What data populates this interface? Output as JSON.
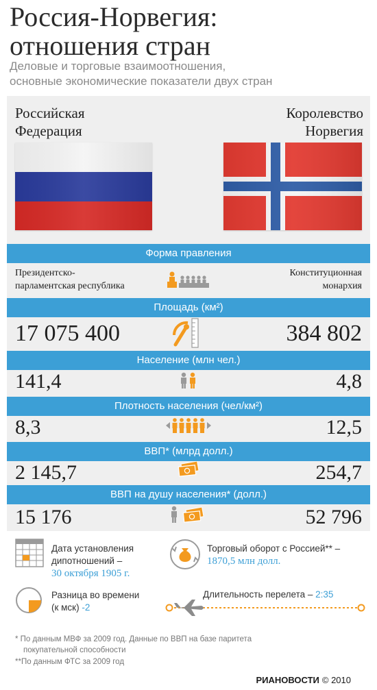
{
  "header": {
    "title_line1": "Россия-Норвегия:",
    "title_line2": "отношения стран",
    "subtitle_line1": "Деловые и торговые взаимоотношения,",
    "subtitle_line2": "основные экономические показатели двух стран"
  },
  "countries": {
    "left_line1": "Российская",
    "left_line2": "Федерация",
    "right_line1": "Королевство",
    "right_line2": "Норвегия"
  },
  "rows": {
    "government": {
      "label": "Форма правления",
      "left_line1": "Президентско-",
      "left_line2": "парламентская республика",
      "right_line1": "Конституционная",
      "right_line2": "монархия"
    },
    "area": {
      "label": "Площадь (км²)",
      "left": "17 075 400",
      "right": "384 802"
    },
    "population": {
      "label": "Население (млн чел.)",
      "left": "141,4",
      "right": "4,8"
    },
    "density": {
      "label": "Плотность населения (чел/км²)",
      "left": "8,3",
      "right": "12,5"
    },
    "gdp": {
      "label": "ВВП* (млрд долл.)",
      "left": "2 145,7",
      "right": "254,7"
    },
    "gdp_per_capita": {
      "label": "ВВП на душу населения* (долл.)",
      "left": "15 176",
      "right": "52 796"
    }
  },
  "info": {
    "diplomacy_line1": "Дата установления",
    "diplomacy_line2": "дипотношений –",
    "diplomacy_date": "30 октября 1905 г.",
    "trade_line1": "Торговый оборот с Россией** –",
    "trade_value": "1870,5 млн долл.",
    "timezone_line1": "Разница во времени",
    "timezone_line2": "(к мск)",
    "timezone_value": "-2",
    "flight_label": "Длительность перелета –",
    "flight_value": "2:35"
  },
  "footnotes": {
    "f1_line1": "* По данным МВФ за 2009 год. Данные по ВВП на базе паритета",
    "f1_line2": "покупательной способности",
    "f2": "**По данным ФТС за 2009 год"
  },
  "brand": {
    "logo": "РИАНОВОСТИ",
    "copyright": "© 2010"
  },
  "colors": {
    "accent": "#3c9fd6",
    "icon_orange": "#f39a1f",
    "panel_bg": "#efefef",
    "norway_red": "#e23a31",
    "russia_blue": "#2a3b9b",
    "russia_red": "#d62a26"
  }
}
